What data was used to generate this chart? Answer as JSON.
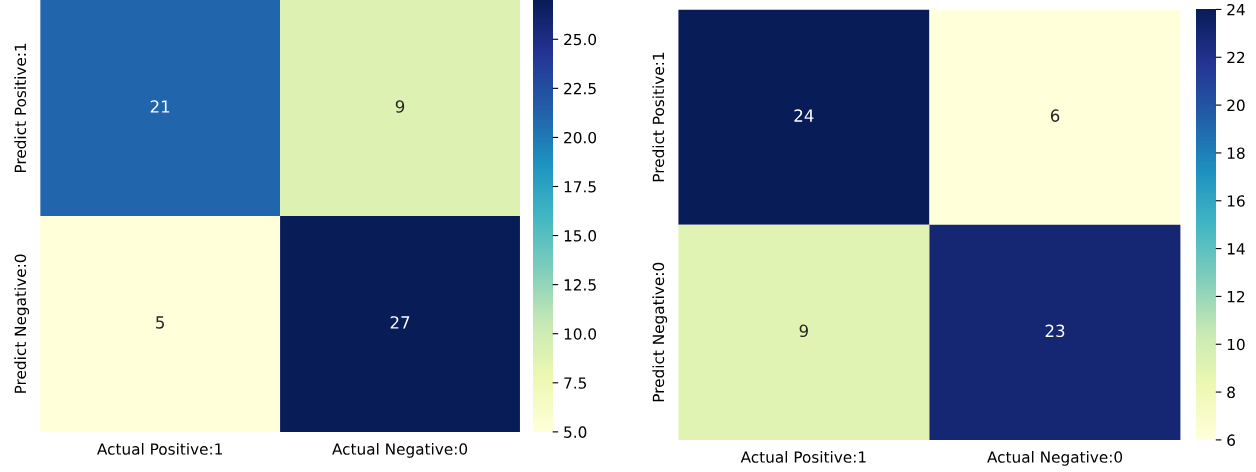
{
  "chart_data": [
    {
      "type": "heatmap",
      "categories": [
        "Actual Positive:1",
        "Actual Negative:0"
      ],
      "y_categories": [
        "Predict Positive:1",
        "Predict Negative:0"
      ],
      "cells": [
        [
          21,
          9
        ],
        [
          5,
          27
        ]
      ],
      "data_labels": true,
      "clim": [
        5,
        27
      ],
      "cticks": [
        {
          "value": 5,
          "label": "5.0"
        },
        7.5,
        {
          "value": 10,
          "label": "10.0"
        },
        12.5,
        {
          "value": 15,
          "label": "15.0"
        },
        17.5,
        {
          "value": 20,
          "label": "20.0"
        },
        22.5,
        {
          "value": 25,
          "label": "25.0"
        }
      ]
    },
    {
      "type": "heatmap",
      "categories": [
        "Actual Positive:1",
        "Actual Negative:0"
      ],
      "y_categories": [
        "Predict Positive:1",
        "Predict Negative:0"
      ],
      "cells": [
        [
          24,
          6
        ],
        [
          9,
          23
        ]
      ],
      "data_labels": true,
      "clim": [
        6,
        24
      ],
      "cticks": [
        6,
        8,
        10,
        12,
        14,
        16,
        18,
        20,
        22,
        24
      ]
    }
  ]
}
